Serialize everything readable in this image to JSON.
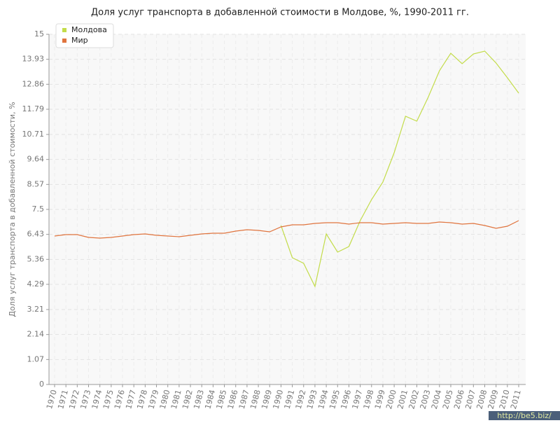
{
  "chart_data": {
    "type": "line",
    "title": "Доля услуг транспорта в добавленной стоимости в Молдове, %, 1990-2011 гг.",
    "y_label": "Доля услуг транспорта в добавленной стоимости, %",
    "x": [
      1970,
      1971,
      1972,
      1973,
      1974,
      1975,
      1976,
      1977,
      1978,
      1979,
      1980,
      1981,
      1982,
      1983,
      1984,
      1985,
      1986,
      1987,
      1988,
      1989,
      1990,
      1991,
      1992,
      1993,
      1994,
      1995,
      1996,
      1997,
      1998,
      1999,
      2000,
      2001,
      2002,
      2003,
      2004,
      2005,
      2006,
      2007,
      2008,
      2009,
      2010,
      2011
    ],
    "xlim": [
      1970,
      2011
    ],
    "ylim": [
      0,
      15
    ],
    "yticks": [
      0,
      1.07,
      2.14,
      3.21,
      4.29,
      5.36,
      6.43,
      7.5,
      8.57,
      9.64,
      10.71,
      11.79,
      12.86,
      13.93,
      15
    ],
    "grid": true,
    "legend": "top-left",
    "series": [
      {
        "name": "Молдова",
        "color": "#c3dc4a",
        "values": [
          null,
          null,
          null,
          null,
          null,
          null,
          null,
          null,
          null,
          null,
          null,
          null,
          null,
          null,
          null,
          null,
          null,
          null,
          null,
          null,
          6.81,
          5.43,
          5.19,
          4.2,
          6.45,
          5.67,
          5.91,
          7.02,
          7.92,
          8.67,
          9.93,
          11.49,
          11.28,
          12.3,
          13.44,
          14.19,
          13.74,
          14.16,
          14.28,
          13.77,
          13.14,
          12.48
        ]
      },
      {
        "name": "Мир",
        "color": "#e0743e",
        "values": [
          6.36,
          6.42,
          6.42,
          6.3,
          6.27,
          6.3,
          6.36,
          6.42,
          6.45,
          6.39,
          6.36,
          6.33,
          6.39,
          6.45,
          6.48,
          6.48,
          6.57,
          6.63,
          6.6,
          6.54,
          6.75,
          6.84,
          6.84,
          6.9,
          6.93,
          6.93,
          6.87,
          6.93,
          6.93,
          6.87,
          6.9,
          6.93,
          6.9,
          6.9,
          6.96,
          6.93,
          6.87,
          6.9,
          6.81,
          6.69,
          6.78,
          7.02
        ]
      }
    ],
    "watermark": "http://be5.biz/"
  }
}
